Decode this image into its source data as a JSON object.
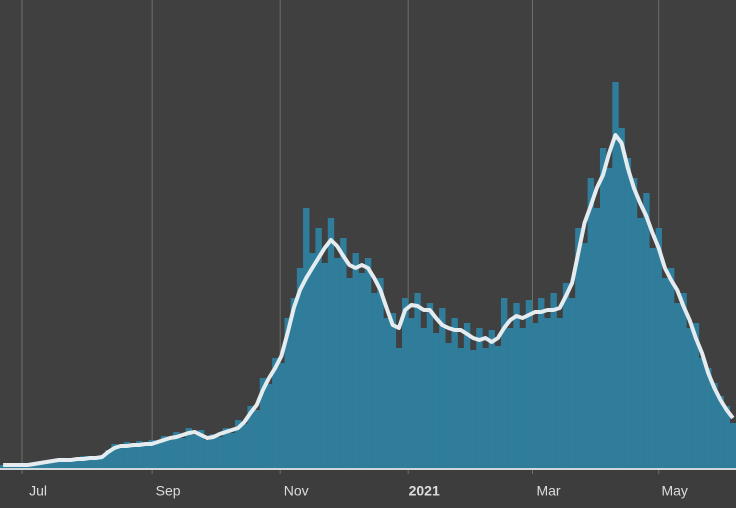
{
  "chart_data": {
    "type": "bar",
    "xlim": [
      -0.5,
      118.5
    ],
    "ylim": [
      0,
      468
    ],
    "xticks": [
      {
        "value": 3.06,
        "label": "Jul"
      },
      {
        "value": 24.1,
        "label": "Sep"
      },
      {
        "value": 44.8,
        "label": "Nov"
      },
      {
        "value": 65.5,
        "label": "2021"
      },
      {
        "value": 85.6,
        "label": "Mar"
      },
      {
        "value": 106.0,
        "label": "May"
      }
    ],
    "grid": true,
    "series": [
      {
        "type": "bar",
        "color": "#2f7d9b",
        "values": [
          3,
          3,
          3,
          3,
          4,
          4,
          6,
          7,
          6,
          9,
          8,
          10,
          8,
          12,
          9,
          12,
          11,
          18,
          24,
          20,
          26,
          21,
          27,
          22,
          28,
          25,
          32,
          28,
          36,
          30,
          40,
          33,
          38,
          28,
          34,
          31,
          40,
          35,
          48,
          44,
          62,
          58,
          90,
          84,
          110,
          105,
          150,
          170,
          200,
          260,
          215,
          240,
          205,
          250,
          210,
          230,
          190,
          215,
          195,
          210,
          175,
          190,
          150,
          155,
          120,
          170,
          150,
          175,
          140,
          165,
          135,
          160,
          125,
          150,
          120,
          145,
          118,
          140,
          120,
          138,
          122,
          170,
          140,
          165,
          140,
          168,
          145,
          170,
          150,
          175,
          150,
          185,
          170,
          240,
          225,
          290,
          260,
          320,
          300,
          386,
          340,
          310,
          290,
          250,
          275,
          220,
          240,
          190,
          200,
          165,
          175,
          140,
          145,
          110,
          100,
          85,
          72,
          62,
          45
        ]
      },
      {
        "type": "line",
        "color": "#e4ecef",
        "values": [
          3,
          3,
          3,
          3,
          3,
          4,
          5,
          6,
          7,
          8,
          8,
          8,
          9,
          9,
          10,
          10,
          11,
          16,
          20,
          22,
          22,
          23,
          23,
          24,
          24,
          26,
          28,
          30,
          31,
          33,
          35,
          36,
          33,
          30,
          31,
          34,
          36,
          38,
          40,
          46,
          55,
          63,
          78,
          90,
          100,
          112,
          135,
          160,
          178,
          190,
          200,
          210,
          220,
          228,
          222,
          212,
          203,
          200,
          203,
          200,
          190,
          178,
          160,
          143,
          140,
          158,
          163,
          162,
          158,
          158,
          150,
          143,
          140,
          138,
          138,
          134,
          130,
          128,
          130,
          126,
          130,
          140,
          148,
          152,
          150,
          153,
          156,
          156,
          158,
          158,
          160,
          172,
          185,
          215,
          245,
          262,
          280,
          293,
          315,
          333,
          325,
          300,
          280,
          265,
          252,
          235,
          220,
          200,
          188,
          178,
          162,
          148,
          130,
          115,
          95,
          80,
          68,
          58,
          50
        ]
      }
    ]
  }
}
